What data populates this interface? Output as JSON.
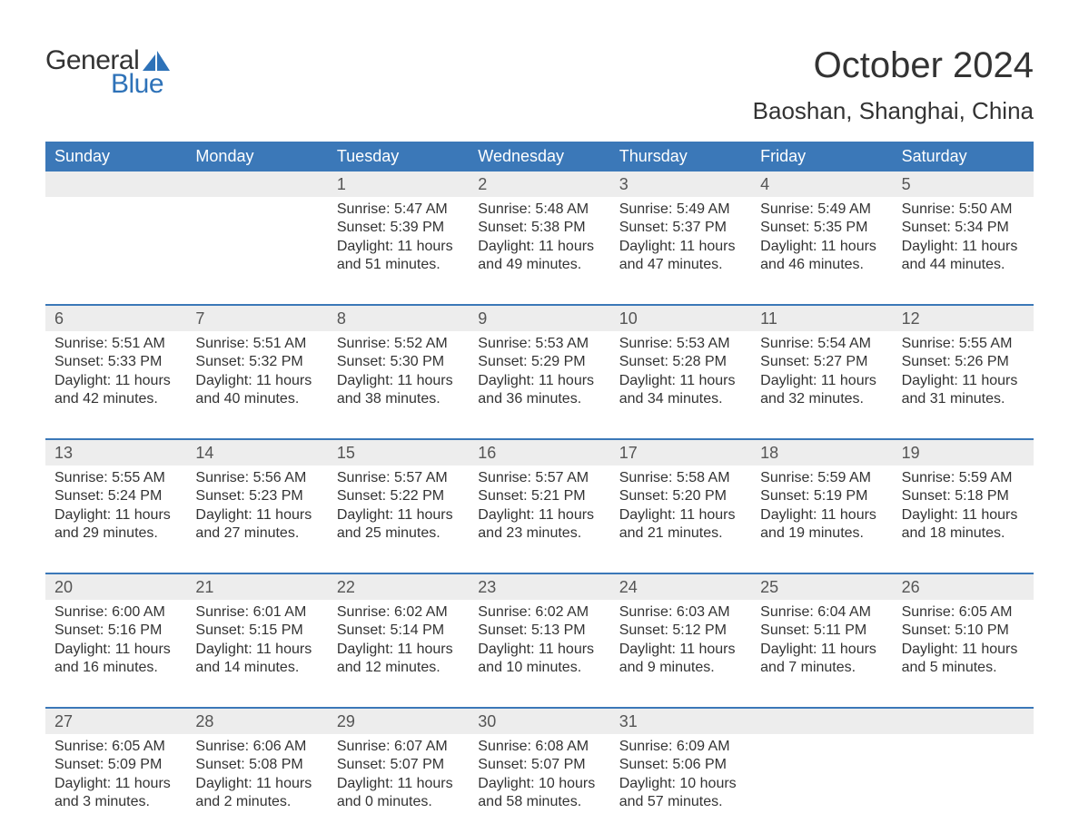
{
  "brand": {
    "general": "General",
    "blue": "Blue",
    "accent_color": "#2e72b8"
  },
  "title": "October 2024",
  "location": "Baoshan, Shanghai, China",
  "colors": {
    "header_bg": "#3b78b8",
    "header_text": "#ffffff",
    "daynum_bg": "#ededed",
    "row_border": "#3b78b8",
    "text": "#333333"
  },
  "weekdays": [
    "Sunday",
    "Monday",
    "Tuesday",
    "Wednesday",
    "Thursday",
    "Friday",
    "Saturday"
  ],
  "weeks": [
    [
      null,
      null,
      {
        "n": "1",
        "sunrise": "5:47 AM",
        "sunset": "5:39 PM",
        "daylight": "11 hours and 51 minutes."
      },
      {
        "n": "2",
        "sunrise": "5:48 AM",
        "sunset": "5:38 PM",
        "daylight": "11 hours and 49 minutes."
      },
      {
        "n": "3",
        "sunrise": "5:49 AM",
        "sunset": "5:37 PM",
        "daylight": "11 hours and 47 minutes."
      },
      {
        "n": "4",
        "sunrise": "5:49 AM",
        "sunset": "5:35 PM",
        "daylight": "11 hours and 46 minutes."
      },
      {
        "n": "5",
        "sunrise": "5:50 AM",
        "sunset": "5:34 PM",
        "daylight": "11 hours and 44 minutes."
      }
    ],
    [
      {
        "n": "6",
        "sunrise": "5:51 AM",
        "sunset": "5:33 PM",
        "daylight": "11 hours and 42 minutes."
      },
      {
        "n": "7",
        "sunrise": "5:51 AM",
        "sunset": "5:32 PM",
        "daylight": "11 hours and 40 minutes."
      },
      {
        "n": "8",
        "sunrise": "5:52 AM",
        "sunset": "5:30 PM",
        "daylight": "11 hours and 38 minutes."
      },
      {
        "n": "9",
        "sunrise": "5:53 AM",
        "sunset": "5:29 PM",
        "daylight": "11 hours and 36 minutes."
      },
      {
        "n": "10",
        "sunrise": "5:53 AM",
        "sunset": "5:28 PM",
        "daylight": "11 hours and 34 minutes."
      },
      {
        "n": "11",
        "sunrise": "5:54 AM",
        "sunset": "5:27 PM",
        "daylight": "11 hours and 32 minutes."
      },
      {
        "n": "12",
        "sunrise": "5:55 AM",
        "sunset": "5:26 PM",
        "daylight": "11 hours and 31 minutes."
      }
    ],
    [
      {
        "n": "13",
        "sunrise": "5:55 AM",
        "sunset": "5:24 PM",
        "daylight": "11 hours and 29 minutes."
      },
      {
        "n": "14",
        "sunrise": "5:56 AM",
        "sunset": "5:23 PM",
        "daylight": "11 hours and 27 minutes."
      },
      {
        "n": "15",
        "sunrise": "5:57 AM",
        "sunset": "5:22 PM",
        "daylight": "11 hours and 25 minutes."
      },
      {
        "n": "16",
        "sunrise": "5:57 AM",
        "sunset": "5:21 PM",
        "daylight": "11 hours and 23 minutes."
      },
      {
        "n": "17",
        "sunrise": "5:58 AM",
        "sunset": "5:20 PM",
        "daylight": "11 hours and 21 minutes."
      },
      {
        "n": "18",
        "sunrise": "5:59 AM",
        "sunset": "5:19 PM",
        "daylight": "11 hours and 19 minutes."
      },
      {
        "n": "19",
        "sunrise": "5:59 AM",
        "sunset": "5:18 PM",
        "daylight": "11 hours and 18 minutes."
      }
    ],
    [
      {
        "n": "20",
        "sunrise": "6:00 AM",
        "sunset": "5:16 PM",
        "daylight": "11 hours and 16 minutes."
      },
      {
        "n": "21",
        "sunrise": "6:01 AM",
        "sunset": "5:15 PM",
        "daylight": "11 hours and 14 minutes."
      },
      {
        "n": "22",
        "sunrise": "6:02 AM",
        "sunset": "5:14 PM",
        "daylight": "11 hours and 12 minutes."
      },
      {
        "n": "23",
        "sunrise": "6:02 AM",
        "sunset": "5:13 PM",
        "daylight": "11 hours and 10 minutes."
      },
      {
        "n": "24",
        "sunrise": "6:03 AM",
        "sunset": "5:12 PM",
        "daylight": "11 hours and 9 minutes."
      },
      {
        "n": "25",
        "sunrise": "6:04 AM",
        "sunset": "5:11 PM",
        "daylight": "11 hours and 7 minutes."
      },
      {
        "n": "26",
        "sunrise": "6:05 AM",
        "sunset": "5:10 PM",
        "daylight": "11 hours and 5 minutes."
      }
    ],
    [
      {
        "n": "27",
        "sunrise": "6:05 AM",
        "sunset": "5:09 PM",
        "daylight": "11 hours and 3 minutes."
      },
      {
        "n": "28",
        "sunrise": "6:06 AM",
        "sunset": "5:08 PM",
        "daylight": "11 hours and 2 minutes."
      },
      {
        "n": "29",
        "sunrise": "6:07 AM",
        "sunset": "5:07 PM",
        "daylight": "11 hours and 0 minutes."
      },
      {
        "n": "30",
        "sunrise": "6:08 AM",
        "sunset": "5:07 PM",
        "daylight": "10 hours and 58 minutes."
      },
      {
        "n": "31",
        "sunrise": "6:09 AM",
        "sunset": "5:06 PM",
        "daylight": "10 hours and 57 minutes."
      },
      null,
      null
    ]
  ],
  "labels": {
    "sunrise": "Sunrise:",
    "sunset": "Sunset:",
    "daylight": "Daylight:"
  }
}
